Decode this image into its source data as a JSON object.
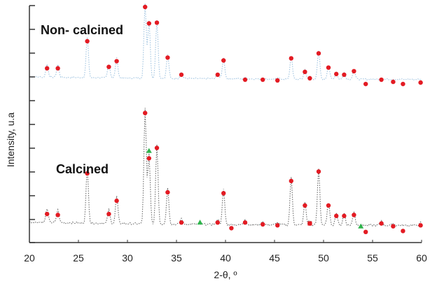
{
  "chart_data": {
    "type": "scatter",
    "xlabel": "2-θ, º",
    "ylabel": "Intensity, u.a",
    "xlim": [
      20,
      60
    ],
    "xticks": [
      "20",
      "25",
      "30",
      "35",
      "40",
      "45",
      "50",
      "55",
      "60"
    ],
    "grid": false,
    "y_tick_labels": false,
    "series": [
      {
        "name": "Non- calcined",
        "color": "#9fc3e0",
        "marker_color": "#e31b23",
        "baseline": 0.04,
        "scale": 0.3,
        "peaks": [
          {
            "x": 21.8,
            "y": 0.14
          },
          {
            "x": 22.9,
            "y": 0.14
          },
          {
            "x": 25.9,
            "y": 0.52
          },
          {
            "x": 28.1,
            "y": 0.16
          },
          {
            "x": 28.9,
            "y": 0.24
          },
          {
            "x": 31.8,
            "y": 1.0
          },
          {
            "x": 32.2,
            "y": 0.77
          },
          {
            "x": 33.0,
            "y": 0.78
          },
          {
            "x": 34.1,
            "y": 0.29
          },
          {
            "x": 35.5,
            "y": 0.05
          },
          {
            "x": 39.2,
            "y": 0.05
          },
          {
            "x": 39.8,
            "y": 0.25
          },
          {
            "x": 42.0,
            "y": -0.02
          },
          {
            "x": 43.8,
            "y": -0.02
          },
          {
            "x": 45.3,
            "y": -0.03
          },
          {
            "x": 46.7,
            "y": 0.28
          },
          {
            "x": 48.1,
            "y": 0.09
          },
          {
            "x": 48.6,
            "y": 0.0
          },
          {
            "x": 49.5,
            "y": 0.35
          },
          {
            "x": 50.5,
            "y": 0.15
          },
          {
            "x": 51.3,
            "y": 0.06
          },
          {
            "x": 52.1,
            "y": 0.05
          },
          {
            "x": 53.1,
            "y": 0.1
          },
          {
            "x": 54.3,
            "y": -0.08
          },
          {
            "x": 55.9,
            "y": -0.02
          },
          {
            "x": 57.1,
            "y": -0.05
          },
          {
            "x": 58.1,
            "y": -0.08
          },
          {
            "x": 59.9,
            "y": -0.06
          }
        ],
        "extra_markers": []
      },
      {
        "name": "Calcined",
        "color": "#6a6a6a",
        "marker_color": "#e31b23",
        "baseline": 0.04,
        "scale": 0.3,
        "peaks": [
          {
            "x": 21.8,
            "y": 0.11
          },
          {
            "x": 22.9,
            "y": 0.1
          },
          {
            "x": 25.9,
            "y": 0.54
          },
          {
            "x": 28.1,
            "y": 0.11
          },
          {
            "x": 28.9,
            "y": 0.25
          },
          {
            "x": 31.8,
            "y": 1.18
          },
          {
            "x": 32.2,
            "y": 0.7
          },
          {
            "x": 33.0,
            "y": 0.81
          },
          {
            "x": 34.1,
            "y": 0.34
          },
          {
            "x": 35.5,
            "y": 0.02
          },
          {
            "x": 39.2,
            "y": 0.02
          },
          {
            "x": 39.8,
            "y": 0.33
          },
          {
            "x": 40.6,
            "y": -0.04
          },
          {
            "x": 42.0,
            "y": 0.02
          },
          {
            "x": 43.8,
            "y": 0.0
          },
          {
            "x": 45.3,
            "y": -0.01
          },
          {
            "x": 46.7,
            "y": 0.46
          },
          {
            "x": 48.1,
            "y": 0.2
          },
          {
            "x": 48.6,
            "y": 0.01
          },
          {
            "x": 49.5,
            "y": 0.56
          },
          {
            "x": 50.5,
            "y": 0.2
          },
          {
            "x": 51.3,
            "y": 0.09
          },
          {
            "x": 52.1,
            "y": 0.09
          },
          {
            "x": 53.1,
            "y": 0.1
          },
          {
            "x": 54.3,
            "y": -0.08
          },
          {
            "x": 55.9,
            "y": 0.01
          },
          {
            "x": 57.1,
            "y": -0.02
          },
          {
            "x": 58.1,
            "y": -0.07
          },
          {
            "x": 59.9,
            "y": -0.01
          }
        ],
        "extra_markers": [
          {
            "x": 32.2,
            "y": 0.78,
            "shape": "triangle",
            "color": "#2db34a"
          },
          {
            "x": 37.4,
            "y": 0.02,
            "shape": "triangle",
            "color": "#2db34a"
          },
          {
            "x": 53.8,
            "y": -0.02,
            "shape": "triangle",
            "color": "#2db34a"
          },
          {
            "x": 48.6,
            "y": 0.01,
            "shape": "square",
            "color": "#e31b23"
          }
        ]
      }
    ]
  }
}
